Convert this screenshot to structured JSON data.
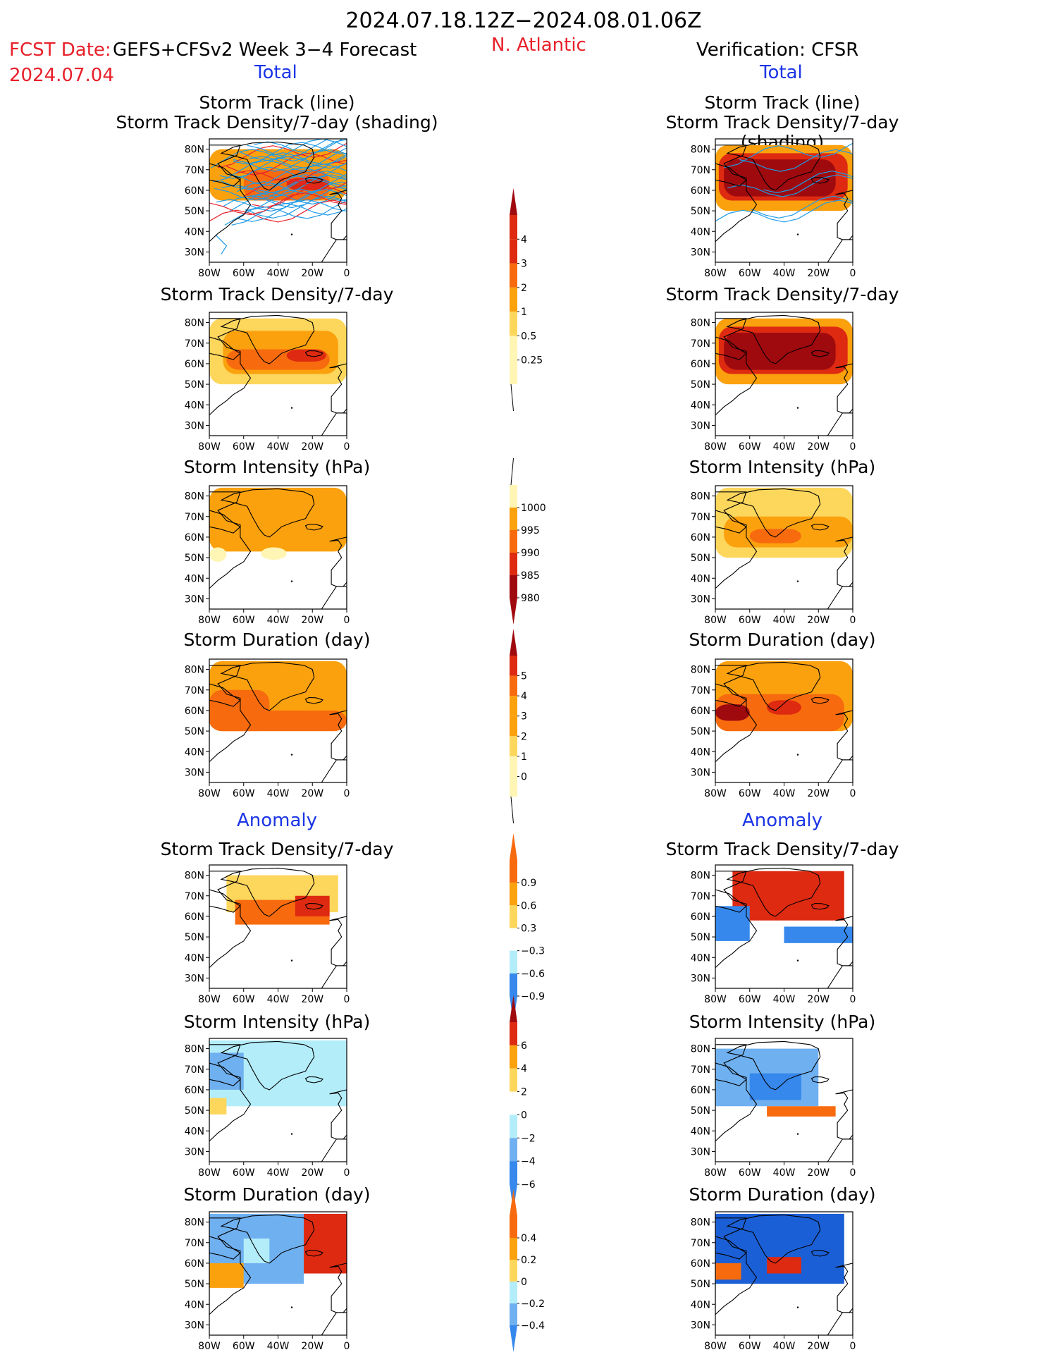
{
  "header": {
    "period": "2024.07.18.12Z−2024.08.01.06Z",
    "fcst_label": "FCST Date:",
    "fcst_date": "2024.07.04",
    "model": "GEFS+CFSv2 Week 3−4 Forecast",
    "region": "N. Atlantic",
    "verification": "Verification: CFSR",
    "left_total": "Total",
    "right_total": "Total",
    "left_anomaly": "Anomaly",
    "right_anomaly": "Anomaly"
  },
  "axes": {
    "lat_ticks": [
      "80N",
      "70N",
      "60N",
      "50N",
      "40N",
      "30N"
    ],
    "lon_ticks": [
      "80W",
      "60W",
      "40W",
      "20W",
      "0"
    ]
  },
  "colors": {
    "c1": "#fff5b4",
    "c2": "#fdd65c",
    "c3": "#fba10e",
    "c4": "#f76b0e",
    "c5": "#de2a10",
    "c6": "#9f0a0e",
    "light_blue": "#b3edfa",
    "mid_blue": "#6fb0f0",
    "blue": "#3688ec",
    "deep_blue": "#1b5fd6",
    "orange": "#fba10e",
    "track_blue": "#1e9be6",
    "track_red": "#e8202a"
  },
  "chart_data": [
    {
      "type": "heatmap",
      "panel": "forecast-total-track",
      "title": "Storm Track (line)\nStorm Track Density/7-day (shading)",
      "overlay": "storm tracks",
      "cells": [
        {
          "lon": [
            -80,
            0
          ],
          "lat": [
            55,
            80
          ],
          "level": 3
        },
        {
          "lon": [
            -60,
            -10
          ],
          "lat": [
            55,
            70
          ],
          "level": 4
        },
        {
          "lon": [
            -35,
            -10
          ],
          "lat": [
            60,
            66
          ],
          "level": 5
        }
      ]
    },
    {
      "type": "heatmap",
      "panel": "forecast-total-density",
      "title": "Storm Track Density/7-day",
      "cells": [
        {
          "lon": [
            -80,
            0
          ],
          "lat": [
            50,
            82
          ],
          "level": 2
        },
        {
          "lon": [
            -72,
            -5
          ],
          "lat": [
            55,
            76
          ],
          "level": 3
        },
        {
          "lon": [
            -70,
            -10
          ],
          "lat": [
            57,
            67
          ],
          "level": 4
        },
        {
          "lon": [
            -35,
            -12
          ],
          "lat": [
            61,
            67
          ],
          "level": 5
        }
      ]
    },
    {
      "type": "heatmap",
      "panel": "forecast-total-intensity",
      "title": "Storm Intensity (hPa)",
      "cells": [
        {
          "lon": [
            -80,
            0
          ],
          "lat": [
            53,
            84
          ],
          "level": 3
        },
        {
          "lon": [
            -80,
            -70
          ],
          "lat": [
            48,
            55
          ],
          "level": 1
        },
        {
          "lon": [
            -50,
            -35
          ],
          "lat": [
            49,
            55
          ],
          "level": 1
        }
      ]
    },
    {
      "type": "heatmap",
      "panel": "forecast-total-duration",
      "title": "Storm Duration (day)",
      "cells": [
        {
          "lon": [
            -80,
            0
          ],
          "lat": [
            50,
            84
          ],
          "level": 3
        },
        {
          "lon": [
            -80,
            0
          ],
          "lat": [
            50,
            60
          ],
          "level": 4
        },
        {
          "lon": [
            -80,
            -45
          ],
          "lat": [
            50,
            70
          ],
          "level": 4
        }
      ]
    },
    {
      "type": "heatmap",
      "panel": "verification-total-track",
      "title": "Storm Track (line)\nStorm Track Density/7-day (shading)",
      "overlay": "storm tracks",
      "cells": [
        {
          "lon": [
            -80,
            0
          ],
          "lat": [
            50,
            82
          ],
          "level": 3
        },
        {
          "lon": [
            -78,
            -3
          ],
          "lat": [
            55,
            78
          ],
          "level": 5
        },
        {
          "lon": [
            -75,
            -10
          ],
          "lat": [
            57,
            75
          ],
          "level": 6
        }
      ]
    },
    {
      "type": "heatmap",
      "panel": "verification-total-density",
      "title": "Storm Track Density/7-day",
      "cells": [
        {
          "lon": [
            -80,
            0
          ],
          "lat": [
            50,
            82
          ],
          "level": 3
        },
        {
          "lon": [
            -78,
            -3
          ],
          "lat": [
            55,
            78
          ],
          "level": 5
        },
        {
          "lon": [
            -75,
            -10
          ],
          "lat": [
            57,
            75
          ],
          "level": 6
        }
      ]
    },
    {
      "type": "heatmap",
      "panel": "verification-total-intensity",
      "title": "Storm Intensity (hPa)",
      "cells": [
        {
          "lon": [
            -80,
            0
          ],
          "lat": [
            50,
            84
          ],
          "level": 2
        },
        {
          "lon": [
            -75,
            0
          ],
          "lat": [
            55,
            70
          ],
          "level": 3
        },
        {
          "lon": [
            -60,
            -30
          ],
          "lat": [
            57,
            64
          ],
          "level": 4
        }
      ]
    },
    {
      "type": "heatmap",
      "panel": "verification-total-duration",
      "title": "Storm Duration (day)",
      "cells": [
        {
          "lon": [
            -80,
            0
          ],
          "lat": [
            50,
            84
          ],
          "level": 3
        },
        {
          "lon": [
            -80,
            -5
          ],
          "lat": [
            50,
            68
          ],
          "level": 4
        },
        {
          "lon": [
            -80,
            -60
          ],
          "lat": [
            55,
            63
          ],
          "level": 6
        },
        {
          "lon": [
            -50,
            -30
          ],
          "lat": [
            58,
            65
          ],
          "level": 5
        }
      ]
    },
    {
      "type": "heatmap",
      "panel": "forecast-anomaly-density",
      "title": "Storm Track Density/7-day",
      "cells": [
        {
          "lon": [
            -70,
            -5
          ],
          "lat": [
            62,
            80
          ],
          "level": "p1"
        },
        {
          "lon": [
            -65,
            -10
          ],
          "lat": [
            56,
            68
          ],
          "level": "p3"
        },
        {
          "lon": [
            -30,
            -10
          ],
          "lat": [
            60,
            70
          ],
          "level": "p4"
        }
      ]
    },
    {
      "type": "heatmap",
      "panel": "forecast-anomaly-intensity",
      "title": "Storm Intensity (hPa)",
      "cells": [
        {
          "lon": [
            -80,
            0
          ],
          "lat": [
            52,
            84
          ],
          "level": "n1"
        },
        {
          "lon": [
            -80,
            -60
          ],
          "lat": [
            60,
            78
          ],
          "level": "n2"
        },
        {
          "lon": [
            -80,
            -70
          ],
          "lat": [
            48,
            56
          ],
          "level": "p1"
        }
      ]
    },
    {
      "type": "heatmap",
      "panel": "forecast-anomaly-duration",
      "title": "Storm Duration (day)",
      "cells": [
        {
          "lon": [
            -80,
            -25
          ],
          "lat": [
            50,
            84
          ],
          "level": "n2"
        },
        {
          "lon": [
            -60,
            -45
          ],
          "lat": [
            60,
            72
          ],
          "level": "n1"
        },
        {
          "lon": [
            -25,
            0
          ],
          "lat": [
            55,
            84
          ],
          "level": "p4"
        },
        {
          "lon": [
            -80,
            -60
          ],
          "lat": [
            48,
            60
          ],
          "level": "p2"
        }
      ]
    },
    {
      "type": "heatmap",
      "panel": "verification-anomaly-density",
      "title": "Storm Track Density/7-day",
      "cells": [
        {
          "lon": [
            -70,
            -5
          ],
          "lat": [
            58,
            82
          ],
          "level": "p4"
        },
        {
          "lon": [
            -80,
            -60
          ],
          "lat": [
            48,
            65
          ],
          "level": "n3"
        },
        {
          "lon": [
            -40,
            0
          ],
          "lat": [
            47,
            55
          ],
          "level": "n3"
        }
      ]
    },
    {
      "type": "heatmap",
      "panel": "verification-anomaly-intensity",
      "title": "Storm Intensity (hPa)",
      "cells": [
        {
          "lon": [
            -80,
            -20
          ],
          "lat": [
            52,
            80
          ],
          "level": "n2"
        },
        {
          "lon": [
            -60,
            -30
          ],
          "lat": [
            55,
            68
          ],
          "level": "n3"
        },
        {
          "lon": [
            -50,
            -10
          ],
          "lat": [
            47,
            52
          ],
          "level": "p3"
        }
      ]
    },
    {
      "type": "heatmap",
      "panel": "verification-anomaly-duration",
      "title": "Storm Duration (day)",
      "cells": [
        {
          "lon": [
            -80,
            -5
          ],
          "lat": [
            50,
            84
          ],
          "level": "n4"
        },
        {
          "lon": [
            -50,
            -30
          ],
          "lat": [
            55,
            63
          ],
          "level": "p4"
        },
        {
          "lon": [
            -80,
            -65
          ],
          "lat": [
            52,
            60
          ],
          "level": "p3"
        }
      ]
    }
  ],
  "colorbars": [
    {
      "name": "track-density-total",
      "labels": [
        "4",
        "3",
        "2",
        "1",
        "0.5",
        "0.25"
      ]
    },
    {
      "name": "intensity-total",
      "labels": [
        "1000",
        "995",
        "990",
        "985",
        "980"
      ]
    },
    {
      "name": "duration-total",
      "labels": [
        "5",
        "4",
        "3",
        "2",
        "1",
        "0"
      ]
    },
    {
      "name": "track-density-anomaly",
      "labels": [
        "0.9",
        "0.6",
        "0.3",
        "−0.3",
        "−0.6",
        "−0.9"
      ]
    },
    {
      "name": "intensity-anomaly",
      "labels": [
        "6",
        "4",
        "2",
        "0",
        "−2",
        "−4",
        "−6"
      ]
    },
    {
      "name": "duration-anomaly",
      "labels": [
        "0.4",
        "0.2",
        "0",
        "−0.2",
        "−0.4"
      ]
    }
  ]
}
